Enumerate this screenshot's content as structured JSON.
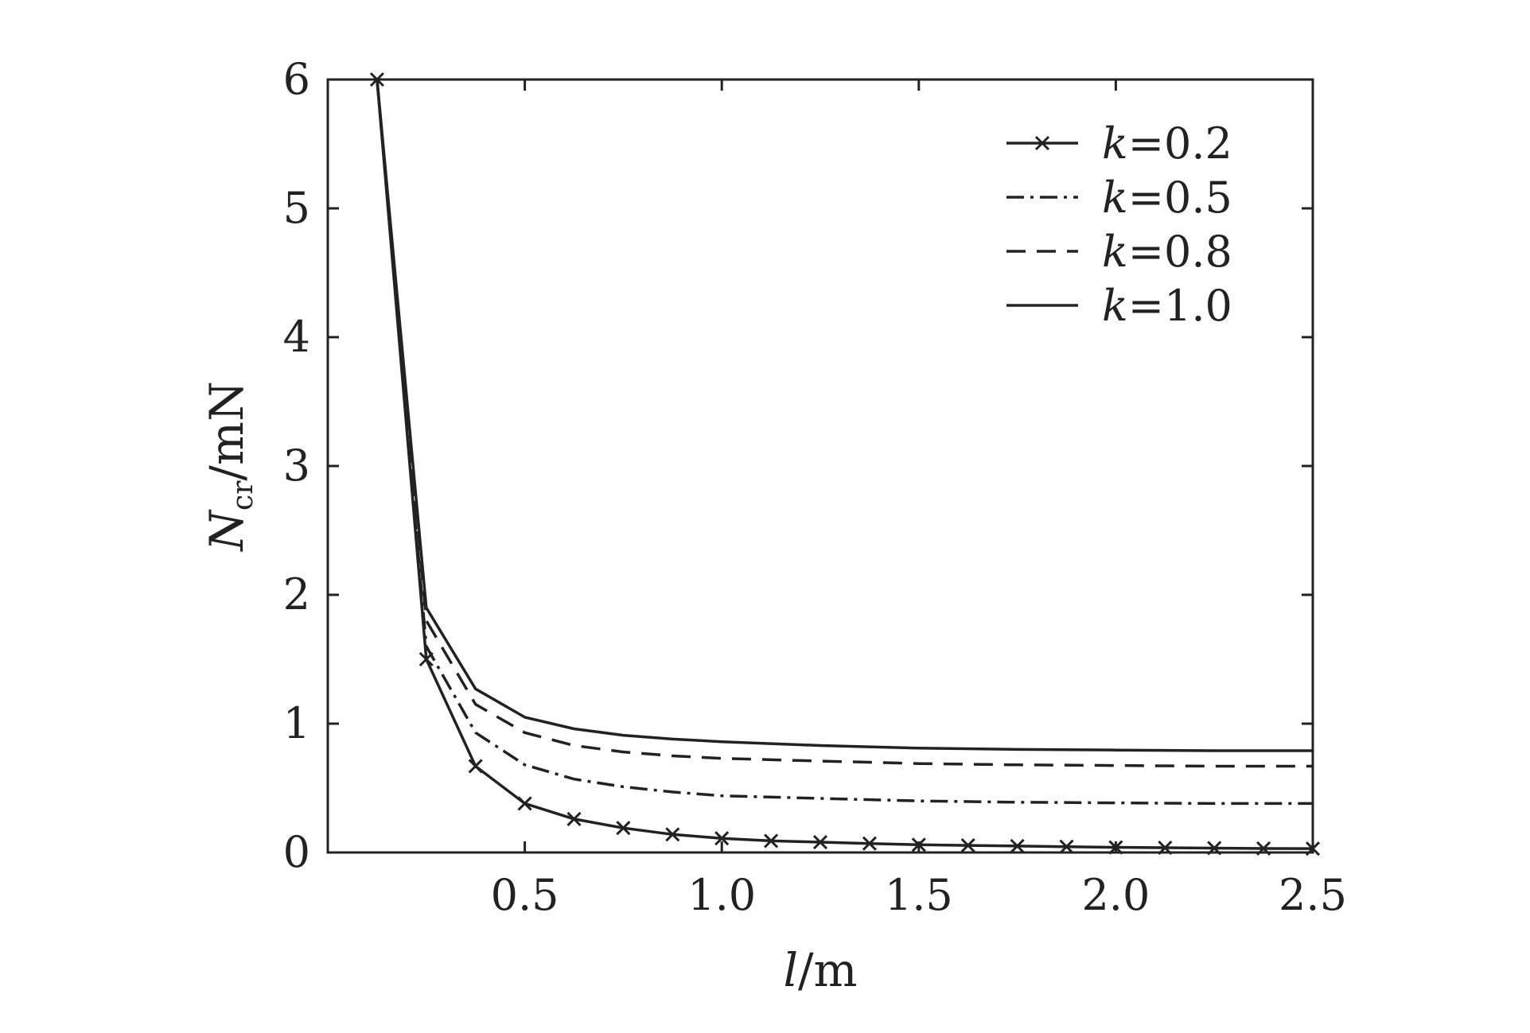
{
  "chart_data": {
    "type": "line",
    "xlabel": {
      "var": "l",
      "unit": "/m"
    },
    "ylabel": {
      "var": "N",
      "sub": "cr",
      "unit": "/mN"
    },
    "xlim": [
      0,
      2.5
    ],
    "ylim": [
      0,
      6
    ],
    "xticks": [
      0.5,
      1.0,
      1.5,
      2.0,
      2.5
    ],
    "xtick_labels": [
      "0.5",
      "1.0",
      "1.5",
      "2.0",
      "2.5"
    ],
    "yticks": [
      0,
      1,
      2,
      3,
      4,
      5,
      6
    ],
    "ytick_labels": [
      "0",
      "1",
      "2",
      "3",
      "4",
      "5",
      "6"
    ],
    "grid": false,
    "legend_position": "top-right",
    "colors": {
      "line": "#222222",
      "axis": "#222222",
      "background": "#ffffff"
    },
    "series": [
      {
        "name": "k=0.2",
        "legend_var": "k",
        "legend_value": "=0.2",
        "style": "solid-x-markers",
        "x": [
          0.125,
          0.25,
          0.375,
          0.5,
          0.625,
          0.75,
          0.875,
          1.0,
          1.125,
          1.25,
          1.375,
          1.5,
          1.625,
          1.75,
          1.875,
          2.0,
          2.125,
          2.25,
          2.375,
          2.5
        ],
        "y": [
          6.0,
          1.5,
          0.67,
          0.38,
          0.26,
          0.19,
          0.14,
          0.11,
          0.09,
          0.08,
          0.07,
          0.06,
          0.055,
          0.05,
          0.045,
          0.04,
          0.037,
          0.034,
          0.031,
          0.03
        ]
      },
      {
        "name": "k=0.5",
        "legend_var": "k",
        "legend_value": "=0.5",
        "style": "dash-dot",
        "x": [
          0.125,
          0.25,
          0.375,
          0.5,
          0.625,
          0.75,
          0.875,
          1.0,
          1.25,
          1.5,
          1.75,
          2.0,
          2.25,
          2.5
        ],
        "y": [
          6.0,
          1.6,
          0.93,
          0.68,
          0.57,
          0.51,
          0.47,
          0.44,
          0.42,
          0.4,
          0.39,
          0.385,
          0.38,
          0.38
        ]
      },
      {
        "name": "k=0.8",
        "legend_var": "k",
        "legend_value": "=0.8",
        "style": "dashed",
        "x": [
          0.125,
          0.25,
          0.375,
          0.5,
          0.625,
          0.75,
          0.875,
          1.0,
          1.25,
          1.5,
          1.75,
          2.0,
          2.25,
          2.5
        ],
        "y": [
          6.0,
          1.8,
          1.15,
          0.93,
          0.83,
          0.78,
          0.75,
          0.73,
          0.71,
          0.69,
          0.68,
          0.675,
          0.67,
          0.67
        ]
      },
      {
        "name": "k=1.0",
        "legend_var": "k",
        "legend_value": "=1.0",
        "style": "solid",
        "x": [
          0.125,
          0.25,
          0.375,
          0.5,
          0.625,
          0.75,
          0.875,
          1.0,
          1.25,
          1.5,
          1.75,
          2.0,
          2.25,
          2.5
        ],
        "y": [
          6.0,
          1.9,
          1.27,
          1.05,
          0.96,
          0.91,
          0.88,
          0.86,
          0.83,
          0.81,
          0.8,
          0.795,
          0.79,
          0.79
        ]
      }
    ]
  }
}
